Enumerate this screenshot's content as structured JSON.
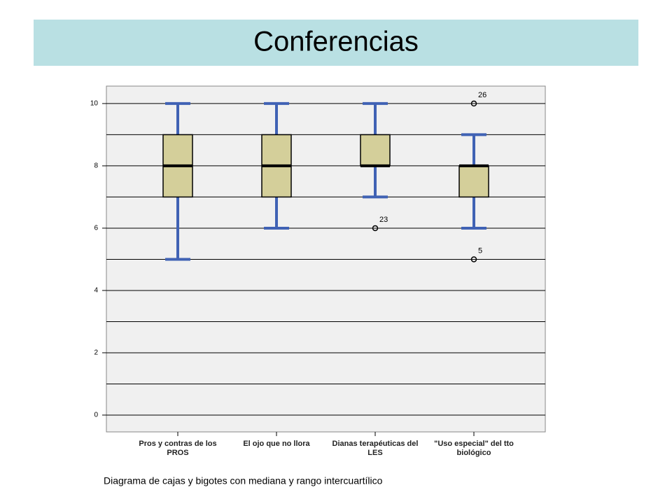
{
  "header": {
    "title": "Conferencias"
  },
  "chart_data": {
    "type": "box",
    "categories": [
      "Pros y contras de los PROS",
      "El ojo que no llora",
      "Dianas terapéuticas del LES",
      "\"Uso especial\" del tto biológico"
    ],
    "boxes": [
      {
        "min": 5,
        "q1": 7,
        "median": 8,
        "q3": 9,
        "max": 10,
        "outliers": []
      },
      {
        "min": 6,
        "q1": 7,
        "median": 8,
        "q3": 9,
        "max": 10,
        "outliers": []
      },
      {
        "min": 7,
        "q1": 8,
        "median": 8,
        "q3": 9,
        "max": 10,
        "outliers": [
          {
            "value": 6,
            "label": "23"
          }
        ]
      },
      {
        "min": 6,
        "q1": 7,
        "median": 8,
        "q3": 8,
        "max": 9,
        "outliers": [
          {
            "value": 10,
            "label": "26"
          },
          {
            "value": 5,
            "label": "5"
          }
        ]
      }
    ],
    "box_color": "#d4cf9a",
    "whisker_color": "#4062b4",
    "ylim": [
      -0.54,
      10.56
    ],
    "yticks": [
      0,
      2,
      4,
      6,
      8,
      10
    ],
    "minor_yticks": [
      1,
      3,
      5,
      7,
      9
    ],
    "grid": true
  },
  "caption": "Diagrama de cajas y bigotes con mediana y rango intercuartílico"
}
